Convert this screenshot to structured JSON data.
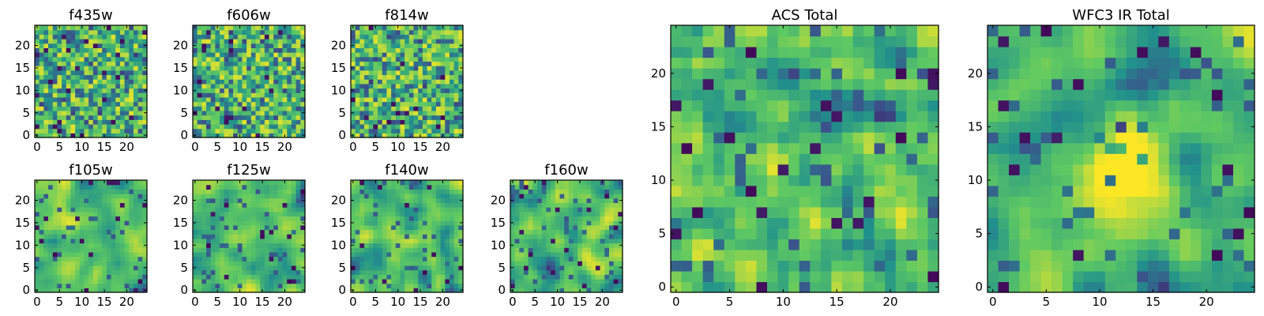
{
  "chart_data": [
    {
      "type": "heatmap",
      "title": "f435w",
      "x_ticks": [
        "0",
        "5",
        "10",
        "15",
        "20"
      ],
      "y_ticks": [
        "0",
        "5",
        "10",
        "15",
        "20"
      ],
      "xlim": [
        -0.5,
        24.5
      ],
      "ylim": [
        -0.5,
        24.5
      ],
      "colormap": "viridis",
      "grid_size": 25,
      "pattern_seed": 11,
      "pattern_smoothness": 0.05,
      "pattern_note": "pixel values not legible; uniform noise field, mostly yellow-green"
    },
    {
      "type": "heatmap",
      "title": "f606w",
      "x_ticks": [
        "0",
        "5",
        "10",
        "15",
        "20"
      ],
      "y_ticks": [
        "0",
        "5",
        "10",
        "15",
        "20"
      ],
      "xlim": [
        -0.5,
        24.5
      ],
      "ylim": [
        -0.5,
        24.5
      ],
      "colormap": "viridis",
      "grid_size": 25,
      "pattern_seed": 23,
      "pattern_smoothness": 0.05,
      "pattern_note": "pixel values not legible; uniform noise field"
    },
    {
      "type": "heatmap",
      "title": "f814w",
      "x_ticks": [
        "0",
        "5",
        "10",
        "15",
        "20"
      ],
      "y_ticks": [
        "0",
        "5",
        "10",
        "15",
        "20"
      ],
      "xlim": [
        -0.5,
        24.5
      ],
      "ylim": [
        -0.5,
        24.5
      ],
      "colormap": "viridis",
      "grid_size": 25,
      "pattern_seed": 37,
      "pattern_smoothness": 0.1,
      "pattern_note": "pixel values not legible; noise field with slight bright patch near center"
    },
    {
      "type": "heatmap",
      "title": "f105w",
      "x_ticks": [
        "0",
        "5",
        "10",
        "15",
        "20"
      ],
      "y_ticks": [
        "0",
        "5",
        "10",
        "15",
        "20"
      ],
      "xlim": [
        -0.5,
        24.5
      ],
      "ylim": [
        -0.5,
        24.5
      ],
      "colormap": "viridis",
      "grid_size": 25,
      "pattern_seed": 41,
      "pattern_smoothness": 0.5,
      "pattern_note": "pixel values not legible; smoother correlated noise"
    },
    {
      "type": "heatmap",
      "title": "f125w",
      "x_ticks": [
        "0",
        "5",
        "10",
        "15",
        "20"
      ],
      "y_ticks": [
        "0",
        "5",
        "10",
        "15",
        "20"
      ],
      "xlim": [
        -0.5,
        24.5
      ],
      "ylim": [
        -0.5,
        24.5
      ],
      "colormap": "viridis",
      "grid_size": 25,
      "pattern_seed": 53,
      "pattern_smoothness": 0.5,
      "pattern_note": "pixel values not legible; smoother correlated noise"
    },
    {
      "type": "heatmap",
      "title": "f140w",
      "x_ticks": [
        "0",
        "5",
        "10",
        "15",
        "20"
      ],
      "y_ticks": [
        "0",
        "5",
        "10",
        "15",
        "20"
      ],
      "xlim": [
        -0.5,
        24.5
      ],
      "ylim": [
        -0.5,
        24.5
      ],
      "colormap": "viridis",
      "grid_size": 25,
      "pattern_seed": 67,
      "pattern_smoothness": 0.55,
      "pattern_note": "pixel values not legible; smoother correlated noise"
    },
    {
      "type": "heatmap",
      "title": "f160w",
      "x_ticks": [
        "0",
        "5",
        "10",
        "15",
        "20"
      ],
      "y_ticks": [
        "0",
        "5",
        "10",
        "15",
        "20"
      ],
      "xlim": [
        -0.5,
        24.5
      ],
      "ylim": [
        -0.5,
        24.5
      ],
      "colormap": "viridis",
      "grid_size": 25,
      "pattern_seed": 79,
      "pattern_smoothness": 0.6,
      "pattern_note": "pixel values not legible; smoother correlated noise with dark spot near bottom"
    },
    {
      "type": "heatmap",
      "title": "ACS Total",
      "x_ticks": [
        "0",
        "5",
        "10",
        "15",
        "20"
      ],
      "y_ticks": [
        "0",
        "5",
        "10",
        "15",
        "20"
      ],
      "xlim": [
        -0.5,
        24.5
      ],
      "ylim": [
        -0.5,
        24.5
      ],
      "colormap": "viridis",
      "grid_size": 25,
      "pattern_seed": 97,
      "pattern_smoothness": 0.15,
      "pattern_note": "pixel values not legible; coarse noise field, mostly yellow-green"
    },
    {
      "type": "heatmap",
      "title": "WFC3 IR Total",
      "x_ticks": [
        "0",
        "5",
        "10",
        "15",
        "20"
      ],
      "y_ticks": [
        "0",
        "5",
        "10",
        "15",
        "20"
      ],
      "xlim": [
        -0.5,
        24.5
      ],
      "ylim": [
        -0.5,
        24.5
      ],
      "colormap": "viridis",
      "grid_size": 25,
      "pattern_seed": 101,
      "pattern_smoothness": 0.5,
      "pattern_note": "pixel values not legible; smooth field with bright yellow blob near (12, 11)",
      "blob": {
        "cx": 12,
        "cy": 11,
        "sigma": 3.5,
        "amplitude": 0.35
      }
    }
  ],
  "colors": {
    "viridis_stops": [
      "#440154",
      "#3b528b",
      "#21918c",
      "#5ec962",
      "#fde725"
    ],
    "axis": "#000000",
    "background": "#ffffff"
  }
}
